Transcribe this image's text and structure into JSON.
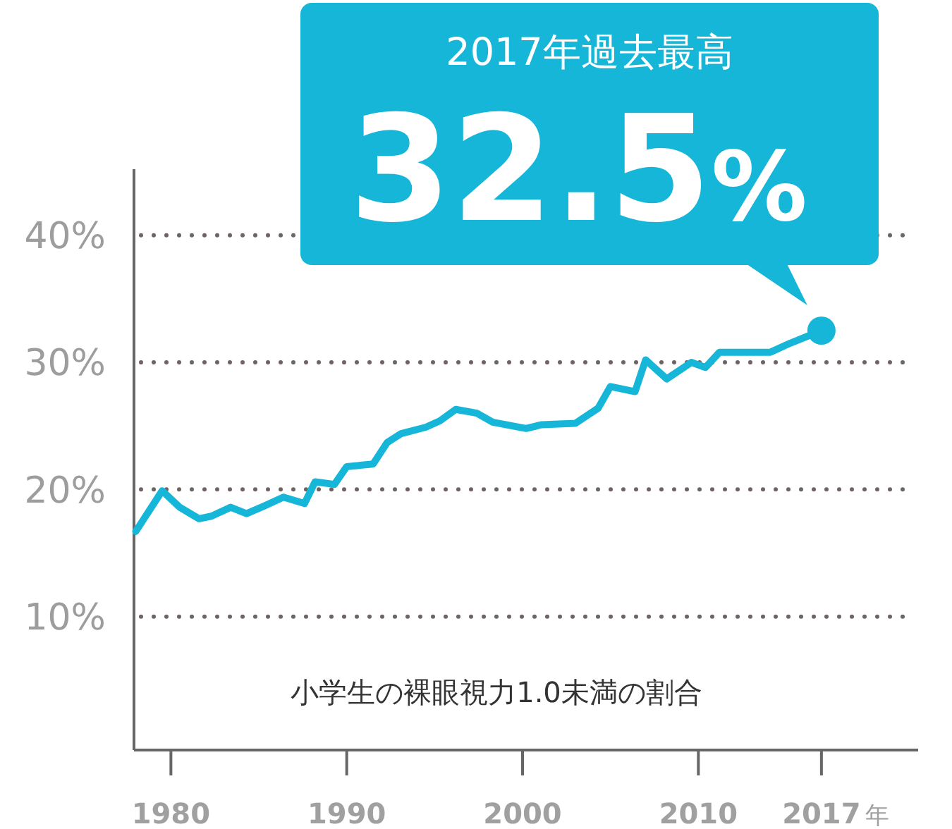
{
  "chart_data": {
    "type": "line",
    "x": [
      1978.0,
      1979.5,
      1980.5,
      1981.6,
      1982.3,
      1983.4,
      1984.3,
      1985.3,
      1986.4,
      1987.6,
      1988.2,
      1989.3,
      1990.0,
      1991.5,
      1992.3,
      1993.1,
      1994.5,
      1995.3,
      1996.2,
      1997.4,
      1998.3,
      2000.2,
      2001.1,
      2003.0,
      2004.3,
      2005.0,
      2006.4,
      2007.0,
      2008.2,
      2009.6,
      2010.4,
      2011.2,
      2014.1,
      2015.2,
      2017
    ],
    "series": [
      {
        "color": "#16b6d8",
        "values": [
          16.7,
          19.9,
          18.6,
          17.7,
          17.9,
          18.6,
          18.1,
          18.7,
          19.4,
          18.9,
          20.6,
          20.4,
          21.8,
          22.0,
          23.7,
          24.4,
          24.9,
          25.4,
          26.3,
          26.0,
          25.3,
          24.8,
          25.1,
          25.2,
          26.4,
          28.1,
          27.7,
          30.2,
          28.7,
          30.0,
          29.6,
          30.8,
          30.8,
          31.5,
          32.5
        ]
      }
    ],
    "xlabel": "年",
    "xlim": [
      1977.9,
      2022.5
    ],
    "xticks": [
      1980,
      1990,
      2000,
      2010,
      2017
    ],
    "ylim": [
      -0.5,
      45.2
    ],
    "yticks": [
      {
        "value": 10,
        "label": "10%"
      },
      {
        "value": 20,
        "label": "20%"
      },
      {
        "value": 30,
        "label": "30%"
      },
      {
        "value": 40,
        "label": "40%"
      }
    ],
    "grid": "y",
    "annotations": [
      "2017年過去最高",
      {
        "text": "32.5%",
        "x": 2017,
        "y": 32.5
      },
      "小学生の裸眼視力1.0未満の割合"
    ]
  }
}
